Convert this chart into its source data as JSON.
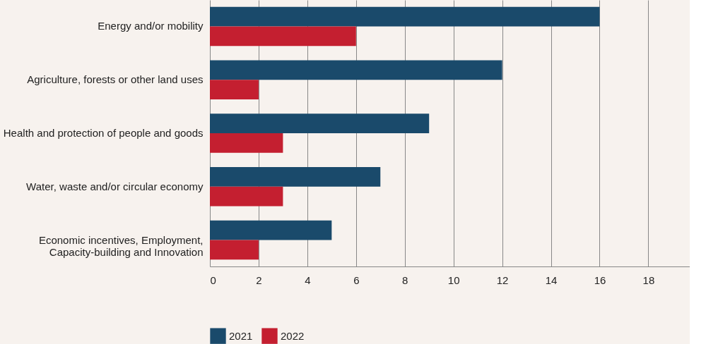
{
  "chart_data": {
    "type": "bar",
    "orientation": "horizontal",
    "categories": [
      "Energy and/or mobility",
      "Agriculture, forests or other land uses",
      "Health and protection of people and goods",
      "Water, waste and/or circular economy",
      "Economic incentives, Employment,\nCapacity-building and Innovation"
    ],
    "series": [
      {
        "name": "2021",
        "color": "#1a4a6b",
        "values": [
          16,
          12,
          9,
          7,
          5
        ]
      },
      {
        "name": "2022",
        "color": "#c41f30",
        "values": [
          6,
          2,
          3,
          3,
          2
        ]
      }
    ],
    "xlim": [
      0,
      19.7
    ],
    "xticks": [
      0,
      2,
      4,
      6,
      8,
      10,
      12,
      14,
      16,
      18
    ],
    "grid": "x",
    "legend": "bottom"
  }
}
